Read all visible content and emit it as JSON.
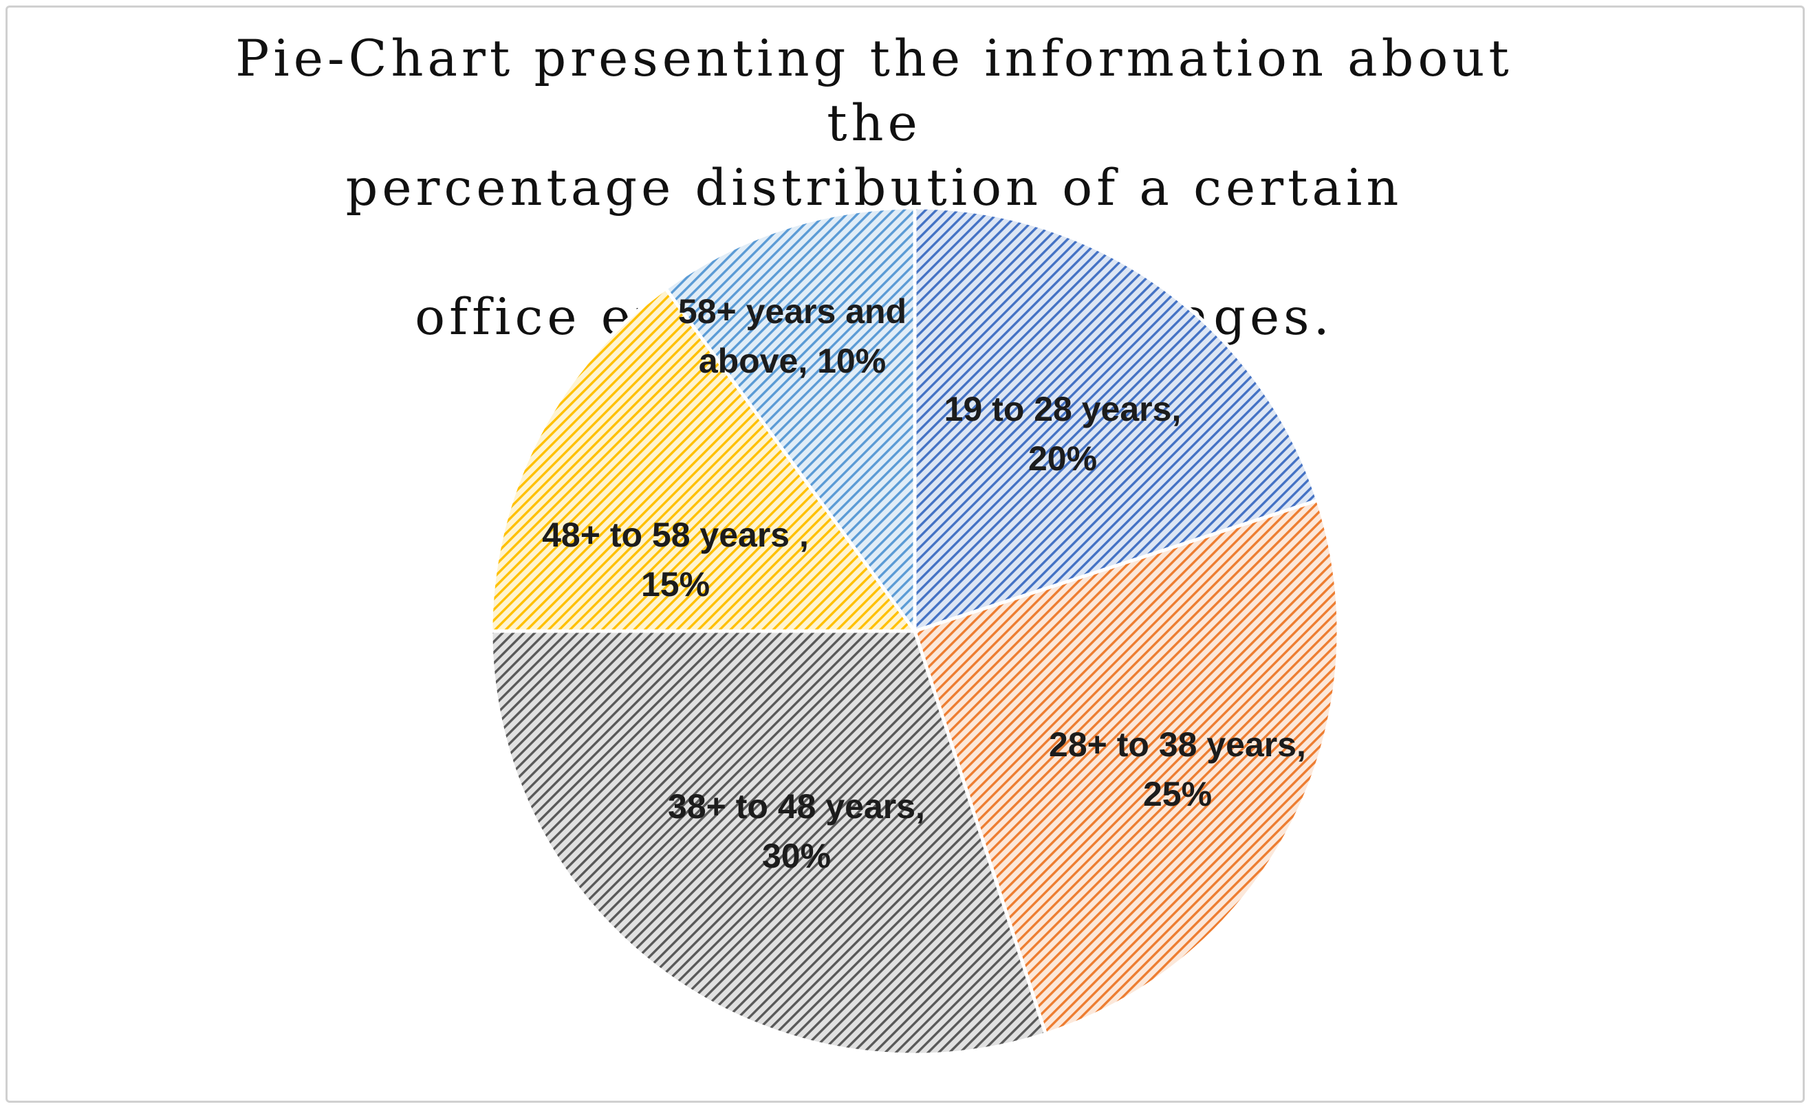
{
  "chart_data": {
    "type": "pie",
    "title": "Pie-Chart presenting the information about the percentage distribution of a certain corporate office employees by their ages.",
    "title_lines": [
      "Pie-Chart presenting the information about the",
      "percentage distribution of a certain corporate",
      "office employees by their ages."
    ],
    "slices": [
      {
        "label": "19 to 28 years,",
        "pct": "20%",
        "value": 20,
        "color": "#4472c4"
      },
      {
        "label": "28+ to 38 years,",
        "pct": "25%",
        "value": 25,
        "color": "#ed7d31"
      },
      {
        "label": "38+ to 48 years,",
        "pct": "30%",
        "value": 30,
        "color": "#595959"
      },
      {
        "label": "48+ to 58 years ,",
        "pct": "15%",
        "value": 15,
        "color": "#ffc000"
      },
      {
        "label": "58+ years and",
        "pct": "above, 10%",
        "value": 10,
        "color": "#5b9bd5"
      }
    ],
    "start_angle": "12 o'clock",
    "direction": "clockwise",
    "fill_style": "diagonal hatch",
    "legend": "none"
  }
}
